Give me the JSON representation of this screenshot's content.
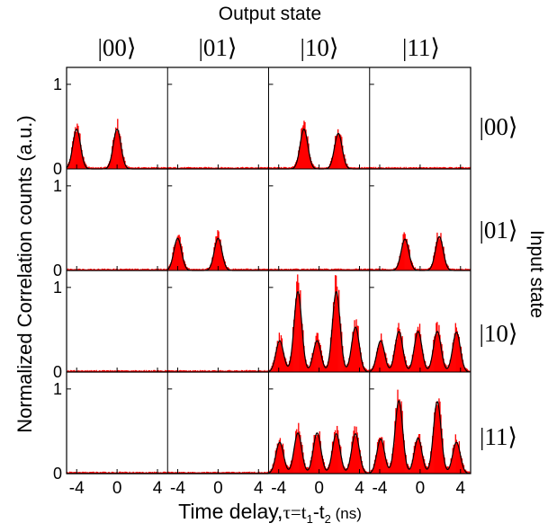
{
  "chart_data": {
    "type": "bar",
    "title": "Output state",
    "xlabel": "Time delay,",
    "xlabel_math": "τ=t",
    "xlabel_sub1": "1",
    "xlabel_dash": "-t",
    "xlabel_sub2": "2",
    "xlabel_unit": " (ns)",
    "ylabel": "Normalized Correlation counts (a.u.)",
    "right_label": "Input state",
    "output_states": [
      "|00⟩",
      "|01⟩",
      "|10⟩",
      "|11⟩"
    ],
    "input_states": [
      "|00⟩",
      "|01⟩",
      "|10⟩",
      "|11⟩"
    ],
    "xlim": [
      -5,
      5
    ],
    "ylim": [
      0,
      1.2
    ],
    "x_ticks": [
      "-4",
      "0",
      "4"
    ],
    "y_ticks": [
      "0",
      "1"
    ],
    "colors": {
      "measured": "#ff0000",
      "theory": "#000000",
      "axis": "#000000"
    },
    "peak_width_ns": 0.38,
    "panels": [
      [
        {
          "peaks": [
            [
              -4,
              0.47
            ],
            [
              0,
              0.47
            ]
          ]
        },
        {
          "peaks": []
        },
        {
          "peaks": [
            [
              -1.5,
              0.47
            ],
            [
              1.9,
              0.42
            ]
          ]
        },
        {
          "peaks": []
        }
      ],
      [
        {
          "peaks": []
        },
        {
          "peaks": [
            [
              -4,
              0.38
            ],
            [
              0,
              0.38
            ]
          ]
        },
        {
          "peaks": []
        },
        {
          "peaks": [
            [
              -1.5,
              0.37
            ],
            [
              1.9,
              0.4
            ]
          ]
        }
      ],
      [
        {
          "peaks": []
        },
        {
          "peaks": []
        },
        {
          "peaks": [
            [
              -3.9,
              0.37
            ],
            [
              -2.1,
              0.95
            ],
            [
              -0.2,
              0.37
            ],
            [
              1.7,
              0.95
            ],
            [
              3.6,
              0.53
            ]
          ]
        },
        {
          "peaks": [
            [
              -3.9,
              0.37
            ],
            [
              -2.1,
              0.48
            ],
            [
              -0.2,
              0.48
            ],
            [
              1.7,
              0.48
            ],
            [
              3.6,
              0.47
            ]
          ]
        }
      ],
      [
        {
          "peaks": []
        },
        {
          "peaks": []
        },
        {
          "peaks": [
            [
              -3.9,
              0.37
            ],
            [
              -2.1,
              0.48
            ],
            [
              -0.2,
              0.48
            ],
            [
              1.7,
              0.47
            ],
            [
              3.6,
              0.47
            ]
          ]
        },
        {
          "peaks": [
            [
              -3.9,
              0.41
            ],
            [
              -2.1,
              0.86
            ],
            [
              -0.2,
              0.42
            ],
            [
              1.7,
              0.85
            ],
            [
              3.6,
              0.37
            ]
          ]
        }
      ]
    ]
  }
}
